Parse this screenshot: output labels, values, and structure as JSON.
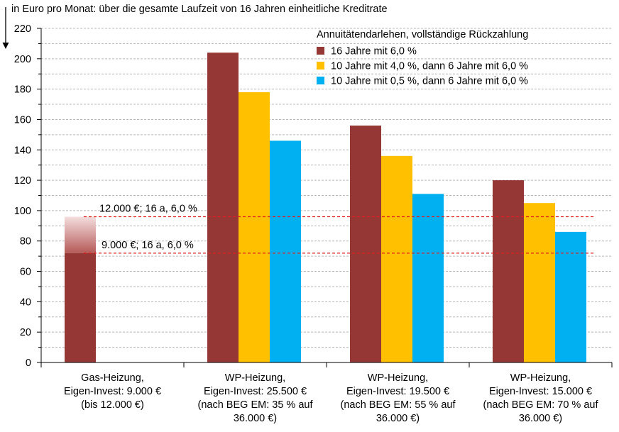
{
  "chart_data": {
    "type": "bar",
    "ylabel": "in Euro pro Monat: über die gesamte Laufzeit von 16 Jahren einheitliche Kreditrate",
    "ylim": [
      0,
      220
    ],
    "yticks": [
      "0",
      "20",
      "40",
      "60",
      "80",
      "100",
      "120",
      "140",
      "160",
      "180",
      "200",
      "220"
    ],
    "grid": true,
    "legend_title": "Annuitätendarlehen, vollständige Rückzahlung",
    "legend_position": "top-right",
    "categories": [
      [
        "Gas-Heizung,",
        "Eigen-Invest: 9.000 €",
        "(bis 12.000 €)"
      ],
      [
        "WP-Heizung,",
        "Eigen-Invest: 25.500 €",
        "(nach BEG EM: 35 % auf",
        "36.000 €)"
      ],
      [
        "WP-Heizung,",
        "Eigen-Invest: 19.500 €",
        "(nach BEG EM: 55 % auf",
        "36.000 €)"
      ],
      [
        "WP-Heizung,",
        "Eigen-Invest: 15.000 €",
        "(nach BEG EM: 70 % auf",
        "36.000 €)"
      ]
    ],
    "series": [
      {
        "name": "16 Jahre mit 6,0 %",
        "color": "#953735",
        "values": [
          72,
          204,
          156,
          120
        ]
      },
      {
        "name": "10 Jahre mit 4,0 %, dann 6 Jahre mit 6,0 %",
        "color": "#FFC000",
        "values": [
          null,
          178,
          136,
          105
        ]
      },
      {
        "name": "10 Jahre mit 0,5 %, dann 6 Jahre mit 6,0 %",
        "color": "#00B0F0",
        "values": [
          null,
          146,
          111,
          86
        ]
      }
    ],
    "gas_range_top": 96,
    "reference_lines": [
      {
        "label": "12.000 €; 16 a, 6,0 %",
        "value": 96,
        "color": "#E02020"
      },
      {
        "label": "9.000 €; 16 a, 6,0 %",
        "value": 72,
        "color": "#E02020"
      }
    ]
  }
}
